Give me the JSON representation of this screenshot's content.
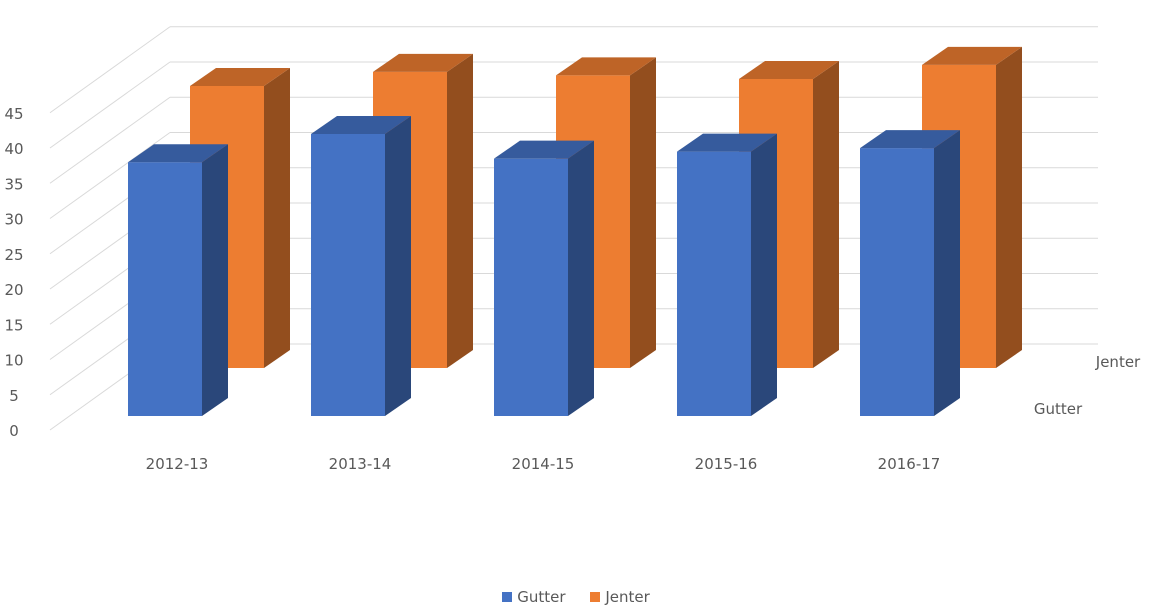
{
  "chart_data": {
    "type": "bar",
    "style": "3d-column",
    "categories": [
      "2012-13",
      "2013-14",
      "2014-15",
      "2015-16",
      "2016-17"
    ],
    "series": [
      {
        "name": "Gutter",
        "color": "#4472C4",
        "values": [
          36,
          40,
          36.5,
          37.5,
          38
        ]
      },
      {
        "name": "Jenter",
        "color": "#ED7D31",
        "values": [
          40,
          42,
          41.5,
          41,
          43
        ]
      }
    ],
    "yticks": [
      "0",
      "5",
      "10",
      "15",
      "20",
      "25",
      "30",
      "35",
      "40",
      "45"
    ],
    "ylim": [
      0,
      45
    ],
    "depth_labels": [
      "Gutter",
      "Jenter"
    ],
    "grid": true,
    "legend": "bottom-center"
  },
  "legend": {
    "items": [
      {
        "label": "Gutter",
        "color": "#4472C4"
      },
      {
        "label": "Jenter",
        "color": "#ED7D31"
      }
    ]
  }
}
